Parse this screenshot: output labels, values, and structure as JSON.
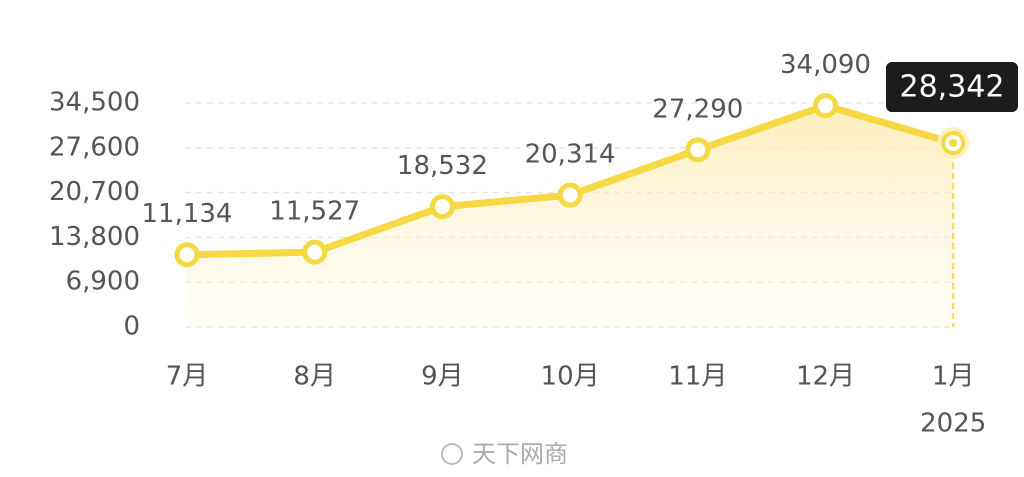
{
  "chart_data": {
    "type": "line",
    "categories": [
      "7月",
      "8月",
      "9月",
      "10月",
      "11月",
      "12月",
      "1月"
    ],
    "year_label": "2025",
    "values": [
      11134,
      11527,
      18532,
      20314,
      27290,
      34090,
      28342
    ],
    "value_labels": [
      "11,134",
      "11,527",
      "18,532",
      "20,314",
      "27,290",
      "34,090",
      "28,342"
    ],
    "color": "#f6d843",
    "ylim": [
      0,
      34500
    ],
    "yticks": [
      0,
      {
        "value": 6900,
        "label": "6,900"
      },
      {
        "value": 13800,
        "label": "13,800"
      },
      {
        "value": 20700,
        "label": "20,700"
      },
      {
        "value": 27600,
        "label": "27,600"
      },
      {
        "value": 34500,
        "label": "34,500"
      }
    ],
    "grid": true,
    "watermark": "天下网商"
  }
}
